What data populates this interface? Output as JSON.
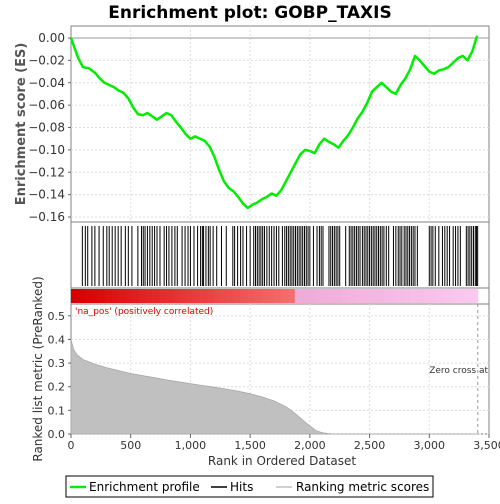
{
  "chart_data": {
    "type": "line",
    "title": "Enrichment plot: GOBP_TAXIS",
    "top_panel": {
      "ylabel": "Enrichment score (ES)",
      "ylim": [
        -0.16,
        0.0
      ],
      "yticks": [
        0.0,
        -0.02,
        -0.04,
        -0.06,
        -0.08,
        -0.1,
        -0.12,
        -0.14,
        -0.16
      ],
      "ytick_labels": [
        "0.00",
        "−0.02",
        "−0.04",
        "−0.06",
        "−0.08",
        "−0.10",
        "−0.12",
        "−0.14",
        "−0.16"
      ],
      "grid": true,
      "series": [
        {
          "name": "Enrichment profile",
          "color": "#00ee00",
          "x": [
            0,
            60,
            100,
            150,
            200,
            240,
            280,
            320,
            360,
            400,
            440,
            480,
            520,
            560,
            600,
            640,
            680,
            720,
            760,
            800,
            840,
            880,
            920,
            960,
            1000,
            1040,
            1080,
            1120,
            1160,
            1200,
            1240,
            1280,
            1320,
            1360,
            1400,
            1440,
            1480,
            1520,
            1560,
            1600,
            1640,
            1680,
            1720,
            1760,
            1800,
            1840,
            1880,
            1920,
            1960,
            2000,
            2040,
            2080,
            2120,
            2160,
            2200,
            2240,
            2280,
            2320,
            2360,
            2400,
            2440,
            2480,
            2520,
            2560,
            2600,
            2640,
            2680,
            2720,
            2760,
            2800,
            2840,
            2880,
            2920,
            2960,
            3000,
            3040,
            3080,
            3120,
            3160,
            3200,
            3240,
            3280,
            3320,
            3360,
            3400
          ],
          "values": [
            0.0,
            -0.018,
            -0.026,
            -0.027,
            -0.031,
            -0.036,
            -0.04,
            -0.042,
            -0.044,
            -0.047,
            -0.049,
            -0.054,
            -0.062,
            -0.068,
            -0.069,
            -0.067,
            -0.07,
            -0.073,
            -0.07,
            -0.067,
            -0.069,
            -0.075,
            -0.08,
            -0.086,
            -0.09,
            -0.088,
            -0.09,
            -0.092,
            -0.097,
            -0.106,
            -0.118,
            -0.128,
            -0.134,
            -0.137,
            -0.142,
            -0.148,
            -0.152,
            -0.149,
            -0.147,
            -0.144,
            -0.142,
            -0.139,
            -0.141,
            -0.136,
            -0.128,
            -0.12,
            -0.112,
            -0.104,
            -0.1,
            -0.101,
            -0.103,
            -0.095,
            -0.09,
            -0.093,
            -0.095,
            -0.098,
            -0.092,
            -0.087,
            -0.08,
            -0.072,
            -0.066,
            -0.058,
            -0.048,
            -0.044,
            -0.04,
            -0.044,
            -0.048,
            -0.05,
            -0.042,
            -0.036,
            -0.028,
            -0.016,
            -0.02,
            -0.025,
            -0.03,
            -0.032,
            -0.029,
            -0.028,
            -0.026,
            -0.022,
            -0.018,
            -0.016,
            -0.02,
            -0.012,
            0.002
          ]
        }
      ]
    },
    "hits_panel": {
      "series_name": "Hits",
      "hit_positions": [
        95,
        120,
        140,
        175,
        200,
        235,
        270,
        300,
        320,
        345,
        370,
        395,
        420,
        455,
        480,
        510,
        560,
        590,
        605,
        620,
        640,
        660,
        680,
        700,
        720,
        745,
        780,
        800,
        820,
        845,
        870,
        890,
        930,
        955,
        980,
        1000,
        1030,
        1060,
        1085,
        1100,
        1110,
        1130,
        1150,
        1165,
        1190,
        1220,
        1260,
        1300,
        1355,
        1370,
        1395,
        1420,
        1440,
        1470,
        1500,
        1530,
        1545,
        1560,
        1575,
        1590,
        1605,
        1620,
        1640,
        1660,
        1680,
        1700,
        1720,
        1740,
        1770,
        1790,
        1805,
        1820,
        1835,
        1850,
        1865,
        1880,
        1895,
        1910,
        1925,
        1940,
        1955,
        1970,
        1985,
        2000,
        2030,
        2060,
        2080,
        2095,
        2110,
        2160,
        2175,
        2190,
        2205,
        2220,
        2235,
        2250,
        2300,
        2330,
        2345,
        2360,
        2375,
        2390,
        2405,
        2420,
        2440,
        2455,
        2470,
        2485,
        2500,
        2515,
        2530,
        2545,
        2560,
        2575,
        2590,
        2605,
        2620,
        2640,
        2660,
        2700,
        2720,
        2740,
        2755,
        2770,
        2790,
        2805,
        2820,
        2835,
        2850,
        2865,
        2880,
        2900,
        3000,
        3015,
        3030,
        3050,
        3080,
        3110,
        3130,
        3150,
        3170,
        3200,
        3220,
        3240,
        3260,
        3310,
        3325,
        3340,
        3355,
        3370,
        3385,
        3395,
        3405
      ]
    },
    "ranked_panel": {
      "ylabel": "Ranked list metric (PreRanked)",
      "xlabel": "Rank in Ordered Dataset",
      "xlim": [
        0,
        3500
      ],
      "ylim": [
        0,
        0.55
      ],
      "xticks": [
        0,
        500,
        1000,
        1500,
        2000,
        2500,
        3000,
        3500
      ],
      "xtick_labels": [
        "0",
        "500",
        "1,000",
        "1,500",
        "2,000",
        "2,500",
        "3,000",
        "3,500"
      ],
      "yticks": [
        0.0,
        0.1,
        0.2,
        0.3,
        0.4,
        0.5
      ],
      "ytick_labels": [
        "0.0",
        "0.1",
        "0.2",
        "0.3",
        "0.4",
        "0.5"
      ],
      "grid": true,
      "series": [
        {
          "name": "Ranking metric scores",
          "color": "#c0c0c0",
          "x": [
            0,
            20,
            50,
            100,
            200,
            300,
            400,
            500,
            600,
            700,
            800,
            900,
            1000,
            1100,
            1200,
            1300,
            1400,
            1500,
            1600,
            1700,
            1800,
            1850,
            1900,
            1950,
            2000,
            2050,
            2100,
            2150,
            2200,
            2500,
            3000,
            3406
          ],
          "values": [
            0.4,
            0.36,
            0.335,
            0.315,
            0.295,
            0.28,
            0.268,
            0.256,
            0.247,
            0.238,
            0.229,
            0.221,
            0.213,
            0.205,
            0.198,
            0.19,
            0.181,
            0.17,
            0.157,
            0.14,
            0.115,
            0.098,
            0.077,
            0.055,
            0.034,
            0.015,
            0.006,
            0.002,
            0.0,
            0.0,
            0.0,
            0.0
          ]
        }
      ],
      "label_positive": "'na_pos' (positively correlated)",
      "zero_cross_label": "Zero cross at",
      "zero_cross_x": 3406
    },
    "legend": {
      "placement": "bottom",
      "entries": [
        {
          "label": "Enrichment profile",
          "color": "#00ee00"
        },
        {
          "label": "Hits",
          "color": "#000000"
        },
        {
          "label": "Ranking metric scores",
          "color": "#c0c0c0"
        }
      ]
    }
  }
}
